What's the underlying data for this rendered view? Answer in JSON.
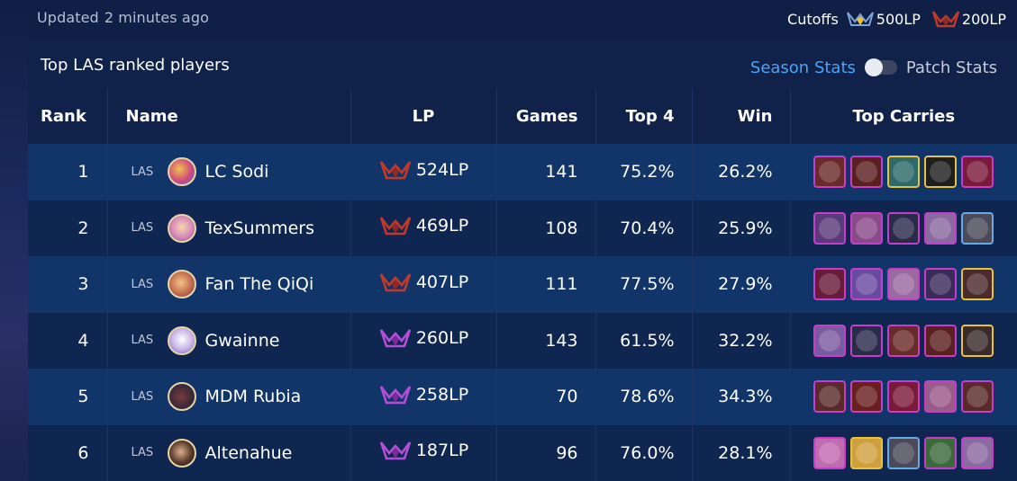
{
  "header": {
    "updated_label": "Updated",
    "updated_time": "2 minutes ago",
    "cutoffs_label": "Cutoffs",
    "cutoff_challenger": "500LP",
    "cutoff_grandmaster": "200LP"
  },
  "leaderboard": {
    "title": "Top LAS ranked players",
    "toggle": {
      "left_label": "Season Stats",
      "right_label": "Patch Stats",
      "selected": "Season Stats"
    },
    "columns": [
      "Rank",
      "Name",
      "LP",
      "Games",
      "Top 4",
      "Win",
      "Top Carries"
    ],
    "rows": [
      {
        "rank": "1",
        "region": "LAS",
        "name": "LC Sodi",
        "lp": "524LP",
        "tier": "grandmaster",
        "games": "141",
        "top4": "75.2%",
        "win": "26.2%"
      },
      {
        "rank": "2",
        "region": "LAS",
        "name": "TexSummers",
        "lp": "469LP",
        "tier": "grandmaster",
        "games": "108",
        "top4": "70.4%",
        "win": "25.9%"
      },
      {
        "rank": "3",
        "region": "LAS",
        "name": "Fan The QiQi",
        "lp": "407LP",
        "tier": "grandmaster",
        "games": "111",
        "top4": "77.5%",
        "win": "27.9%"
      },
      {
        "rank": "4",
        "region": "LAS",
        "name": "Gwainne",
        "lp": "260LP",
        "tier": "master",
        "games": "143",
        "top4": "61.5%",
        "win": "32.2%"
      },
      {
        "rank": "5",
        "region": "LAS",
        "name": "MDM Rubia",
        "lp": "258LP",
        "tier": "master",
        "games": "70",
        "top4": "78.6%",
        "win": "34.3%"
      },
      {
        "rank": "6",
        "region": "LAS",
        "name": "Altenahue",
        "lp": "187LP",
        "tier": "master",
        "games": "96",
        "top4": "76.0%",
        "win": "28.1%"
      }
    ]
  },
  "colors": {
    "accent": "#4da3f5",
    "grandmaster_crest": "#c0392b",
    "master_crest": "#b24fd6",
    "challenger_crest": "#7fa3d6"
  }
}
